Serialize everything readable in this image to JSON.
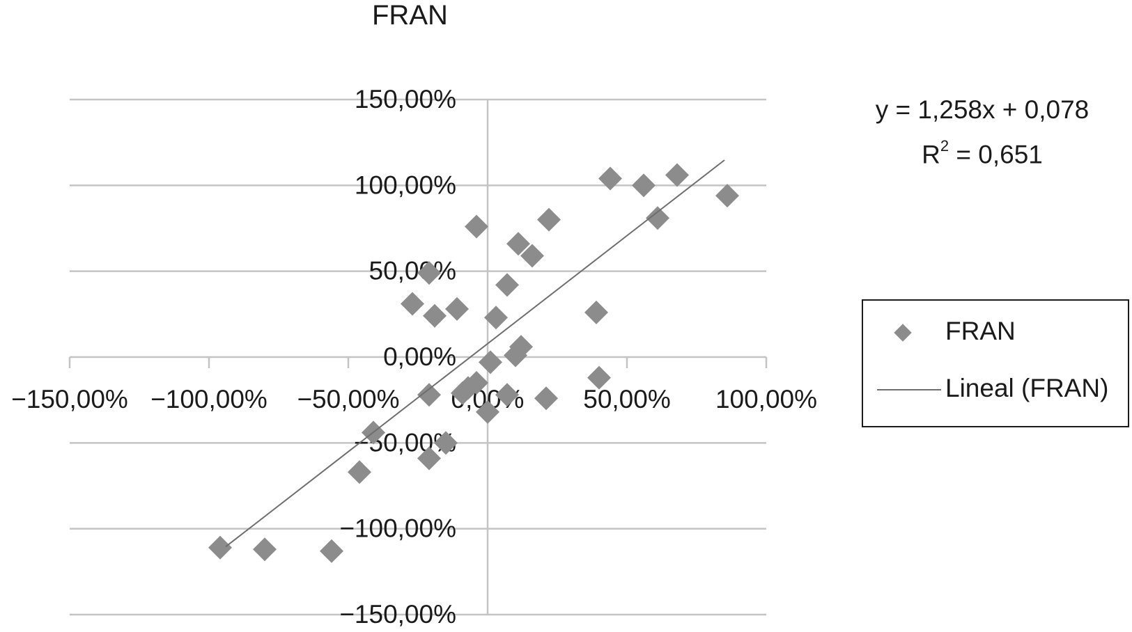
{
  "chart_data": {
    "type": "scatter",
    "title": "FRAN",
    "xlabel": "",
    "ylabel": "",
    "xlim": [
      -1.5,
      1.0
    ],
    "ylim": [
      -1.5,
      1.5
    ],
    "x_ticks": [
      -1.5,
      -1.0,
      -0.5,
      0.0,
      0.5,
      1.0
    ],
    "y_ticks": [
      -1.5,
      -1.0,
      -0.5,
      0.0,
      0.5,
      1.0,
      1.5
    ],
    "x_tick_labels": [
      "−150,00%",
      "−100,00%",
      "−50,00%",
      "0,00%",
      "50,00%",
      "100,00%"
    ],
    "y_tick_labels": [
      "−150,00%",
      "−100,00%",
      "−50,00%",
      "0,00%",
      "50,00%",
      "100,00%",
      "150,00%"
    ],
    "grid": "horizontal",
    "legend_position": "right",
    "series": [
      {
        "name": "FRAN",
        "marker": "diamond",
        "color": "#8c8c8c",
        "points": [
          [
            -0.96,
            -1.11
          ],
          [
            -0.8,
            -1.12
          ],
          [
            -0.56,
            -1.13
          ],
          [
            -0.46,
            -0.67
          ],
          [
            -0.41,
            -0.44
          ],
          [
            -0.21,
            -0.59
          ],
          [
            -0.15,
            -0.5
          ],
          [
            -0.27,
            0.31
          ],
          [
            -0.21,
            0.49
          ],
          [
            -0.19,
            0.24
          ],
          [
            -0.11,
            0.28
          ],
          [
            -0.21,
            -0.22
          ],
          [
            -0.09,
            -0.21
          ],
          [
            -0.07,
            -0.18
          ],
          [
            -0.04,
            -0.15
          ],
          [
            -0.04,
            0.76
          ],
          [
            0.0,
            -0.32
          ],
          [
            0.01,
            -0.03
          ],
          [
            0.03,
            0.23
          ],
          [
            0.07,
            -0.22
          ],
          [
            0.07,
            0.42
          ],
          [
            0.1,
            0.01
          ],
          [
            0.11,
            0.66
          ],
          [
            0.12,
            0.06
          ],
          [
            0.16,
            0.59
          ],
          [
            0.21,
            -0.24
          ],
          [
            0.22,
            0.8
          ],
          [
            0.39,
            0.26
          ],
          [
            0.4,
            -0.12
          ],
          [
            0.44,
            1.04
          ],
          [
            0.56,
            1.0
          ],
          [
            0.61,
            0.81
          ],
          [
            0.68,
            1.06
          ],
          [
            0.86,
            0.94
          ]
        ]
      },
      {
        "name": "Lineal (FRAN)",
        "type": "line",
        "color": "#6e6e6e",
        "trendline": {
          "slope": 1.258,
          "intercept": 0.078,
          "x_range": [
            -0.94,
            0.85
          ]
        }
      }
    ],
    "annotations": {
      "equation": "y = 1,258x + 0,078",
      "r2_base": "R",
      "r2_exp": "2",
      "r2_value": " = 0,651"
    }
  }
}
